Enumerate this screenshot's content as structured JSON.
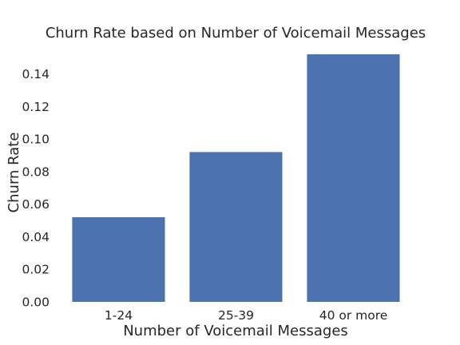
{
  "chart_data": {
    "type": "bar",
    "title": "Churn Rate based on Number of Voicemail Messages",
    "xlabel": "Number of Voicemail Messages",
    "ylabel": "Churn Rate",
    "categories": [
      "1-24",
      "25-39",
      "40 or more"
    ],
    "values": [
      0.052,
      0.092,
      0.152
    ],
    "ylim": [
      0,
      0.153
    ],
    "yticks": [
      "0.00",
      "0.02",
      "0.04",
      "0.06",
      "0.08",
      "0.10",
      "0.12",
      "0.14"
    ],
    "grid": false,
    "colors": {
      "bar": "#4c72b0",
      "text": "#262626",
      "background": "#ffffff"
    }
  }
}
